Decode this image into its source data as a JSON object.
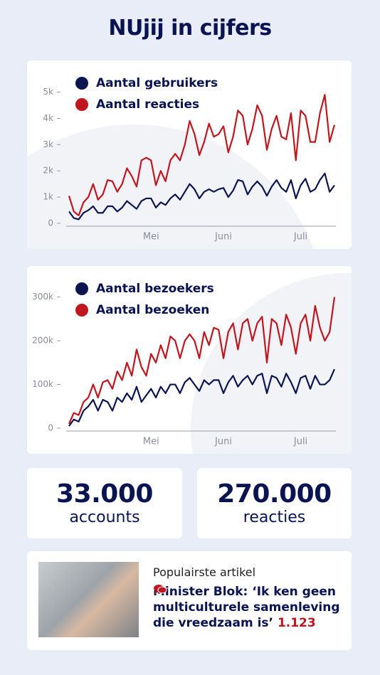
{
  "header": {
    "title": "NUjij in cijfers"
  },
  "chart_data": [
    {
      "type": "line",
      "categories": [
        null,
        null,
        null,
        null,
        null,
        null,
        null,
        null,
        null,
        null,
        null,
        null,
        null,
        null,
        null,
        null,
        null,
        "Mei",
        null,
        null,
        null,
        null,
        null,
        null,
        null,
        null,
        null,
        null,
        null,
        null,
        null,
        null,
        "Juni",
        null,
        null,
        null,
        null,
        null,
        null,
        null,
        null,
        null,
        null,
        null,
        null,
        null,
        null,
        null,
        "Juli",
        null,
        null,
        null,
        null,
        null,
        null,
        null
      ],
      "series": [
        {
          "name": "Aantal gebruikers",
          "color": "#0d1452",
          "values": [
            450,
            200,
            150,
            400,
            500,
            650,
            400,
            400,
            650,
            650,
            450,
            600,
            850,
            700,
            550,
            850,
            950,
            950,
            600,
            800,
            700,
            950,
            1100,
            900,
            1200,
            1500,
            1300,
            950,
            1200,
            1300,
            1200,
            1300,
            1350,
            1000,
            1250,
            1650,
            1600,
            1100,
            1400,
            1600,
            1400,
            1050,
            1400,
            1650,
            1350,
            1200,
            1650,
            950,
            1450,
            1700,
            1200,
            1300,
            1650,
            1900,
            1200,
            1450
          ]
        },
        {
          "name": "Aantal reacties",
          "color": "#c0161f",
          "values": [
            1050,
            450,
            300,
            800,
            1000,
            1500,
            900,
            1100,
            1650,
            1600,
            1200,
            1500,
            2100,
            1800,
            1400,
            2400,
            2500,
            2400,
            1450,
            2000,
            1600,
            2400,
            2650,
            2400,
            3000,
            3900,
            3400,
            2600,
            3100,
            3800,
            3300,
            3400,
            3700,
            2700,
            3300,
            4300,
            4100,
            3000,
            3600,
            4500,
            4100,
            2800,
            3600,
            4100,
            3300,
            3200,
            4200,
            2400,
            4300,
            4100,
            3100,
            3100,
            4200,
            4900,
            3100,
            3750
          ]
        }
      ],
      "ylim": [
        0,
        5800
      ],
      "yticks": [
        0,
        {
          "value": 1000,
          "label": "1k"
        },
        {
          "value": 2000,
          "label": "2k"
        },
        {
          "value": 3000,
          "label": "3k"
        },
        {
          "value": 4000,
          "label": "4k"
        },
        {
          "value": 5000,
          "label": "5k"
        }
      ]
    },
    {
      "type": "line",
      "categories": [
        null,
        null,
        null,
        null,
        null,
        null,
        null,
        null,
        null,
        null,
        null,
        null,
        null,
        null,
        null,
        null,
        null,
        "Mei",
        null,
        null,
        null,
        null,
        null,
        null,
        null,
        null,
        null,
        null,
        null,
        null,
        null,
        null,
        "Juni",
        null,
        null,
        null,
        null,
        null,
        null,
        null,
        null,
        null,
        null,
        null,
        null,
        null,
        null,
        null,
        "Juli",
        null,
        null,
        null,
        null,
        null,
        null,
        null
      ],
      "series": [
        {
          "name": "Aantal bezoekers",
          "color": "#0d1452",
          "values": [
            5000,
            20000,
            15000,
            40000,
            50000,
            65000,
            40000,
            65000,
            60000,
            40000,
            70000,
            60000,
            80000,
            65000,
            95000,
            60000,
            75000,
            90000,
            70000,
            95000,
            80000,
            100000,
            100000,
            80000,
            105000,
            115000,
            100000,
            85000,
            110000,
            100000,
            110000,
            110000,
            80000,
            105000,
            120000,
            95000,
            110000,
            120000,
            100000,
            120000,
            125000,
            80000,
            120000,
            115000,
            95000,
            125000,
            105000,
            80000,
            115000,
            120000,
            90000,
            120000,
            100000,
            100000,
            110000,
            135000
          ]
        },
        {
          "name": "Aantal bezoeken",
          "color": "#c0161f",
          "values": [
            10000,
            35000,
            30000,
            60000,
            70000,
            100000,
            70000,
            105000,
            110000,
            90000,
            130000,
            110000,
            150000,
            120000,
            180000,
            140000,
            120000,
            170000,
            150000,
            190000,
            160000,
            210000,
            200000,
            160000,
            200000,
            215000,
            200000,
            160000,
            220000,
            190000,
            230000,
            225000,
            160000,
            220000,
            240000,
            180000,
            240000,
            250000,
            200000,
            240000,
            255000,
            150000,
            250000,
            240000,
            190000,
            260000,
            230000,
            170000,
            240000,
            260000,
            200000,
            280000,
            230000,
            200000,
            220000,
            300000
          ]
        }
      ],
      "ylim": [
        0,
        345000
      ],
      "yticks": [
        0,
        {
          "value": 100000,
          "label": "100k"
        },
        {
          "value": 200000,
          "label": "200k"
        },
        {
          "value": 300000,
          "label": "300k"
        }
      ]
    }
  ],
  "stats": [
    {
      "value": "33.000",
      "label": "accounts"
    },
    {
      "value": "270.000",
      "label": "reacties"
    }
  ],
  "article": {
    "label": "Populairste artikel",
    "title": "Minister Blok: ‘Ik ken geen multiculturele samenleving die vreedzaam is’",
    "comments": "1.123"
  }
}
